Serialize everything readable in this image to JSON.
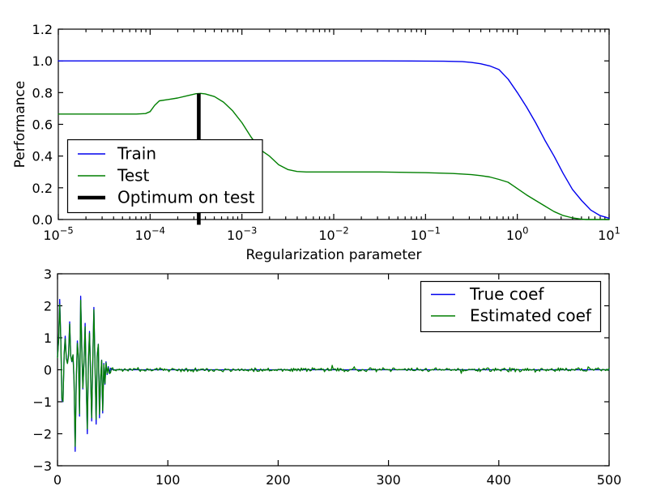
{
  "figure": {
    "background": "#ffffff"
  },
  "colors": {
    "train": "#0000ee",
    "test": "#007f00",
    "optimum": "#000000",
    "axis": "#000000"
  },
  "chart_data": [
    {
      "type": "line",
      "xscale": "log",
      "xlabel": "Regularization parameter",
      "ylabel": "Performance",
      "xlim_log10": [
        -5,
        1
      ],
      "ylim": [
        0,
        1.2
      ],
      "grid": false,
      "xtick_base": "10",
      "xtick_exponents": [
        -5,
        -4,
        -3,
        -2,
        -1,
        0,
        1
      ],
      "xtick_exp_labels": [
        "−5",
        "−4",
        "−3",
        "−2",
        "−1",
        "0",
        "1"
      ],
      "yticks": [
        0,
        0.2,
        0.4,
        0.6,
        0.8,
        1.0,
        1.2
      ],
      "ytick_labels": [
        "0.0",
        "0.2",
        "0.4",
        "0.6",
        "0.8",
        "1.0",
        "1.2"
      ],
      "legend": {
        "position": "lower left",
        "entries": [
          {
            "label": "Train",
            "color": "#0000ee",
            "thick": false
          },
          {
            "label": "Test",
            "color": "#007f00",
            "thick": false
          },
          {
            "label": "Optimum on test",
            "color": "#000000",
            "thick": true
          }
        ]
      },
      "series": [
        {
          "name": "Train",
          "color": "#0000ee",
          "x_log10": [
            -5,
            -4,
            -3,
            -2,
            -1.5,
            -1,
            -0.8,
            -0.6,
            -0.5,
            -0.4,
            -0.3,
            -0.2,
            -0.1,
            0,
            0.1,
            0.2,
            0.3,
            0.4,
            0.5,
            0.6,
            0.7,
            0.8,
            0.9,
            1
          ],
          "y": [
            1,
            1,
            1,
            1,
            1,
            0.999,
            0.998,
            0.995,
            0.99,
            0.982,
            0.968,
            0.945,
            0.885,
            0.8,
            0.71,
            0.61,
            0.5,
            0.4,
            0.29,
            0.19,
            0.12,
            0.06,
            0.025,
            0.008
          ]
        },
        {
          "name": "Test",
          "color": "#007f00",
          "x_log10": [
            -5,
            -4.5,
            -4.15,
            -4.05,
            -4,
            -3.95,
            -3.9,
            -3.8,
            -3.7,
            -3.6,
            -3.5,
            -3.45,
            -3.4,
            -3.3,
            -3.2,
            -3.1,
            -3,
            -2.9,
            -2.8,
            -2.7,
            -2.6,
            -2.5,
            -2.4,
            -2.3,
            -2,
            -1.5,
            -1,
            -0.7,
            -0.5,
            -0.4,
            -0.3,
            -0.2,
            -0.1,
            0,
            0.1,
            0.2,
            0.3,
            0.4,
            0.5,
            0.6,
            0.7,
            0.75,
            0.9,
            1
          ],
          "y": [
            0.665,
            0.665,
            0.665,
            0.668,
            0.68,
            0.72,
            0.748,
            0.757,
            0.766,
            0.78,
            0.793,
            0.795,
            0.792,
            0.775,
            0.74,
            0.685,
            0.61,
            0.52,
            0.44,
            0.4,
            0.345,
            0.315,
            0.303,
            0.3,
            0.3,
            0.3,
            0.295,
            0.29,
            0.283,
            0.277,
            0.268,
            0.253,
            0.235,
            0.195,
            0.155,
            0.12,
            0.085,
            0.05,
            0.025,
            0.01,
            0.002,
            0,
            0,
            0
          ]
        }
      ],
      "optimum_line": {
        "x_log10": -3.47,
        "y_from": 0,
        "y_to": 0.795,
        "color": "#000000"
      }
    },
    {
      "type": "line",
      "xlabel": "",
      "ylabel": "",
      "xlim": [
        0,
        500
      ],
      "ylim": [
        -3,
        3
      ],
      "grid": false,
      "xticks": [
        0,
        100,
        200,
        300,
        400,
        500
      ],
      "xtick_labels": [
        "0",
        "100",
        "200",
        "300",
        "400",
        "500"
      ],
      "yticks": [
        -3,
        -2,
        -1,
        0,
        1,
        2,
        3
      ],
      "ytick_labels": [
        "−3",
        "−2",
        "−1",
        "0",
        "1",
        "2",
        "3"
      ],
      "legend": {
        "position": "upper right",
        "entries": [
          {
            "label": "True coef",
            "color": "#0000ee"
          },
          {
            "label": "Estimated coef",
            "color": "#007f00"
          }
        ]
      },
      "n_samples": 501,
      "x_meaning": "sample index 0 to 500",
      "series": [
        {
          "name": "True coef",
          "color": "#0000ee",
          "signal_first_50": [
            0.4,
            0.95,
            2.2,
            0.95,
            -0.95,
            -1.0,
            0.5,
            1.05,
            0.35,
            0.2,
            0.5,
            1.5,
            0.45,
            0.25,
            0.45,
            -0.3,
            -2.55,
            -0.3,
            0.9,
            0.35,
            -1.45,
            2.3,
            0.7,
            -0.6,
            0.25,
            1.45,
            -0.35,
            -2.0,
            0.25,
            1.2,
            -0.15,
            -1.6,
            0.35,
            1.95,
            0.15,
            -1.7,
            0.45,
            0.8,
            -1.5,
            -0.35,
            0.3,
            -1.35,
            0.2,
            -0.45,
            0.25,
            -0.15,
            0.1,
            -0.1,
            0.05,
            0.02
          ],
          "rest_value": 0
        },
        {
          "name": "Estimated coef",
          "color": "#007f00",
          "derived_from": "True coef",
          "scale": 0.94,
          "noise_amplitude": 0.07,
          "noise_seed": 11
        }
      ]
    }
  ]
}
